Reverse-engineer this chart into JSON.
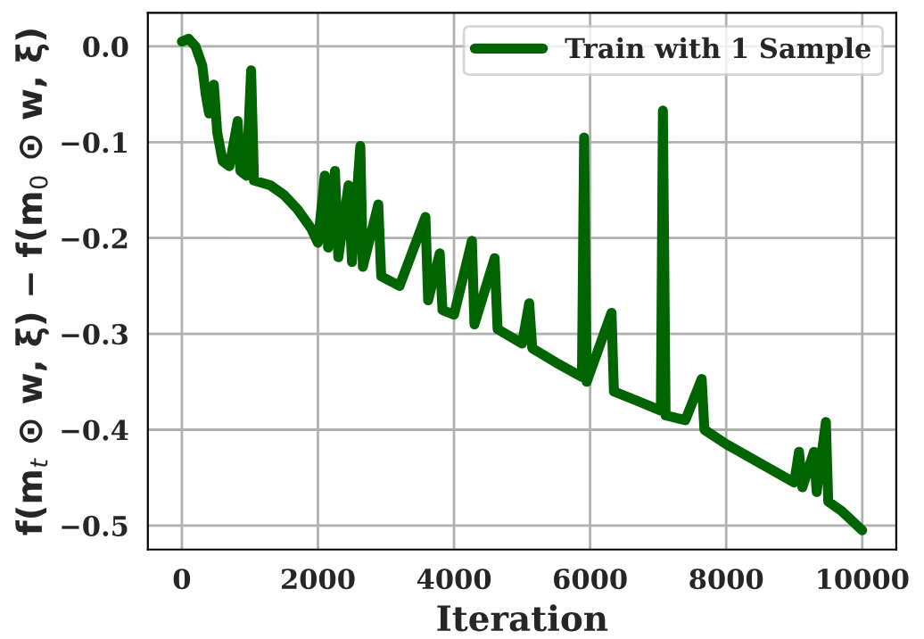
{
  "chart_data": {
    "type": "line",
    "xlabel": "Iteration",
    "ylabel": "f(m$_{t}$ ⊙ w, ξ) − f(m$_{0}$ ⊙ w, ξ)",
    "xlim": [
      -500,
      10500
    ],
    "ylim": [
      -0.525,
      0.035
    ],
    "xticks": [
      0,
      2000,
      4000,
      6000,
      8000,
      10000
    ],
    "yticks": [
      {
        "value": 0.0,
        "label": "0.0"
      },
      {
        "value": -0.1,
        "label": "−0.1"
      },
      {
        "value": -0.2,
        "label": "−0.2"
      },
      {
        "value": -0.3,
        "label": "−0.3"
      },
      {
        "value": -0.4,
        "label": "−0.4"
      },
      {
        "value": -0.5,
        "label": "−0.5"
      }
    ],
    "grid": true,
    "legend": "top right",
    "marker": "none",
    "line_style": "solid",
    "series": [
      {
        "name": "Train with 1 Sample",
        "color": "#006400",
        "x": [
          0,
          100,
          200,
          300,
          350,
          400,
          470,
          520,
          600,
          700,
          820,
          860,
          950,
          1018,
          1060,
          1300,
          1500,
          1700,
          1900,
          2000,
          2100,
          2150,
          2250,
          2300,
          2450,
          2500,
          2623,
          2660,
          2887,
          2930,
          3200,
          3580,
          3620,
          3790,
          3830,
          4000,
          4263,
          4300,
          4597,
          4640,
          5000,
          5105,
          5150,
          5500,
          5880,
          5912,
          5950,
          6315,
          6350,
          6700,
          7040,
          7070,
          7110,
          7400,
          7640,
          7680,
          8000,
          8500,
          9000,
          9070,
          9120,
          9290,
          9330,
          9465,
          9500,
          9700,
          9850,
          10000
        ],
        "values": [
          0.005,
          0.008,
          0.0,
          -0.02,
          -0.05,
          -0.07,
          -0.04,
          -0.09,
          -0.12,
          -0.125,
          -0.078,
          -0.13,
          -0.135,
          -0.025,
          -0.14,
          -0.145,
          -0.155,
          -0.17,
          -0.19,
          -0.205,
          -0.135,
          -0.21,
          -0.13,
          -0.22,
          -0.145,
          -0.225,
          -0.104,
          -0.23,
          -0.165,
          -0.24,
          -0.25,
          -0.178,
          -0.265,
          -0.216,
          -0.275,
          -0.28,
          -0.203,
          -0.29,
          -0.221,
          -0.295,
          -0.31,
          -0.268,
          -0.315,
          -0.33,
          -0.345,
          -0.095,
          -0.35,
          -0.278,
          -0.36,
          -0.37,
          -0.38,
          -0.067,
          -0.385,
          -0.39,
          -0.347,
          -0.4,
          -0.415,
          -0.435,
          -0.455,
          -0.423,
          -0.46,
          -0.423,
          -0.465,
          -0.392,
          -0.475,
          -0.485,
          -0.495,
          -0.505
        ]
      }
    ]
  }
}
